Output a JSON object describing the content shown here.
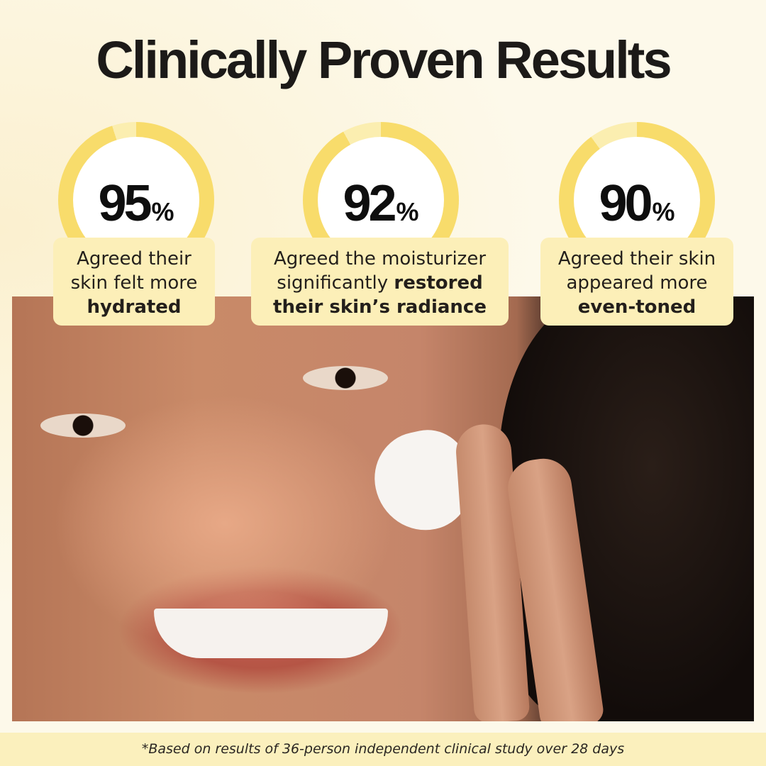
{
  "title": "Clinically Proven Results",
  "colors": {
    "ring": "#f8dc6b",
    "ring_gap": "#fbeeb0",
    "box": "#fcefb8",
    "background": "#fdf9ea"
  },
  "stats": [
    {
      "value": "95",
      "unit": "%",
      "percent": 95,
      "line1": "Agreed their",
      "line2": "skin felt more",
      "bold": "hydrated"
    },
    {
      "value": "92",
      "unit": "%",
      "percent": 92,
      "line1": "Agreed the moisturizer",
      "line2": "significantly",
      "bold2": "restored",
      "bold": "their skin’s radiance"
    },
    {
      "value": "90",
      "unit": "%",
      "percent": 90,
      "line1": "Agreed their skin",
      "line2": "appeared more",
      "bold": "even-toned"
    }
  ],
  "footnote": "*Based on results of 36-person independent clinical study over 28 days"
}
